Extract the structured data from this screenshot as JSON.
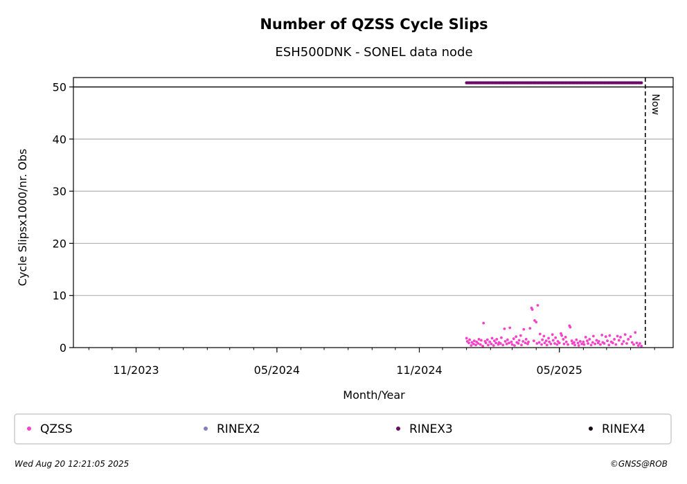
{
  "chart_data": {
    "type": "scatter",
    "title": "Number of QZSS Cycle Slips",
    "subtitle": "ESH500DNK - SONEL data node",
    "xlabel": "Month/Year",
    "ylabel": "Cycle Slipsx1000/nr. Obs",
    "xlim": [
      "2023-08-12",
      "2025-09-25"
    ],
    "ylim": [
      0,
      51.8
    ],
    "y_ticks": [
      0,
      10,
      20,
      30,
      40,
      50
    ],
    "x_ticks": [
      {
        "date": "2023-11-01",
        "label": "11/2023"
      },
      {
        "date": "2024-05-01",
        "label": "05/2024"
      },
      {
        "date": "2024-11-01",
        "label": "11/2024"
      },
      {
        "date": "2025-05-01",
        "label": "05/2025"
      }
    ],
    "grid": "horizontal",
    "cap_line": 50,
    "now_line": {
      "date": "2025-08-20",
      "label": "Now"
    },
    "legend": {
      "placement": "below",
      "entries": [
        {
          "name": "QZSS",
          "color": "#f542c8"
        },
        {
          "name": "RINEX2",
          "color": "#8080c0"
        },
        {
          "name": "RINEX3",
          "color": "#6a0a6a"
        },
        {
          "name": "RINEX4",
          "color": "#1a0a1a"
        }
      ]
    },
    "series": [
      {
        "name": "QZSS",
        "color": "#f542c8",
        "points": [
          [
            "2025-01-01",
            1.8
          ],
          [
            "2025-01-02",
            1.2
          ],
          [
            "2025-01-04",
            0.9
          ],
          [
            "2025-01-05",
            1.5
          ],
          [
            "2025-01-07",
            0.4
          ],
          [
            "2025-01-08",
            1.0
          ],
          [
            "2025-01-10",
            0.7
          ],
          [
            "2025-01-11",
            1.3
          ],
          [
            "2025-01-13",
            0.5
          ],
          [
            "2025-01-14",
            1.1
          ],
          [
            "2025-01-16",
            0.8
          ],
          [
            "2025-01-17",
            1.6
          ],
          [
            "2025-01-19",
            0.6
          ],
          [
            "2025-01-20",
            1.4
          ],
          [
            "2025-01-22",
            0.3
          ],
          [
            "2025-01-23",
            4.7
          ],
          [
            "2025-01-25",
            1.2
          ],
          [
            "2025-01-26",
            0.9
          ],
          [
            "2025-01-28",
            1.5
          ],
          [
            "2025-01-29",
            0.5
          ],
          [
            "2025-01-31",
            1.1
          ],
          [
            "2025-02-02",
            0.7
          ],
          [
            "2025-02-03",
            1.8
          ],
          [
            "2025-02-05",
            0.4
          ],
          [
            "2025-02-06",
            1.3
          ],
          [
            "2025-02-08",
            0.9
          ],
          [
            "2025-02-09",
            1.6
          ],
          [
            "2025-02-11",
            0.6
          ],
          [
            "2025-02-12",
            1.0
          ],
          [
            "2025-02-14",
            0.8
          ],
          [
            "2025-02-15",
            1.9
          ],
          [
            "2025-02-17",
            0.5
          ],
          [
            "2025-02-19",
            3.6
          ],
          [
            "2025-02-20",
            1.2
          ],
          [
            "2025-02-22",
            0.7
          ],
          [
            "2025-02-23",
            1.5
          ],
          [
            "2025-02-25",
            0.9
          ],
          [
            "2025-02-26",
            3.8
          ],
          [
            "2025-02-28",
            1.1
          ],
          [
            "2025-03-01",
            0.6
          ],
          [
            "2025-03-03",
            1.7
          ],
          [
            "2025-03-04",
            0.4
          ],
          [
            "2025-03-06",
            2.1
          ],
          [
            "2025-03-07",
            1.0
          ],
          [
            "2025-03-09",
            0.8
          ],
          [
            "2025-03-10",
            1.4
          ],
          [
            "2025-03-12",
            2.3
          ],
          [
            "2025-03-13",
            0.5
          ],
          [
            "2025-03-15",
            1.2
          ],
          [
            "2025-03-16",
            3.5
          ],
          [
            "2025-03-18",
            0.9
          ],
          [
            "2025-03-19",
            1.6
          ],
          [
            "2025-03-21",
            0.7
          ],
          [
            "2025-03-22",
            1.1
          ],
          [
            "2025-03-24",
            3.7
          ],
          [
            "2025-03-26",
            7.6
          ],
          [
            "2025-03-27",
            7.3
          ],
          [
            "2025-03-29",
            1.3
          ],
          [
            "2025-03-30",
            5.2
          ],
          [
            "2025-04-01",
            4.9
          ],
          [
            "2025-04-02",
            0.8
          ],
          [
            "2025-04-03",
            8.1
          ],
          [
            "2025-04-05",
            1.0
          ],
          [
            "2025-04-06",
            2.6
          ],
          [
            "2025-04-08",
            0.6
          ],
          [
            "2025-04-09",
            1.5
          ],
          [
            "2025-04-11",
            2.2
          ],
          [
            "2025-04-12",
            0.9
          ],
          [
            "2025-04-14",
            1.3
          ],
          [
            "2025-04-15",
            0.5
          ],
          [
            "2025-04-17",
            1.8
          ],
          [
            "2025-04-18",
            1.1
          ],
          [
            "2025-04-20",
            0.7
          ],
          [
            "2025-04-22",
            2.5
          ],
          [
            "2025-04-23",
            1.4
          ],
          [
            "2025-04-25",
            0.8
          ],
          [
            "2025-04-26",
            1.9
          ],
          [
            "2025-04-28",
            0.6
          ],
          [
            "2025-04-29",
            1.2
          ],
          [
            "2025-05-01",
            0.9
          ],
          [
            "2025-05-03",
            2.7
          ],
          [
            "2025-05-04",
            2.3
          ],
          [
            "2025-05-06",
            1.6
          ],
          [
            "2025-05-07",
            0.7
          ],
          [
            "2025-05-09",
            2.0
          ],
          [
            "2025-05-10",
            1.1
          ],
          [
            "2025-05-12",
            0.6
          ],
          [
            "2025-05-14",
            4.2
          ],
          [
            "2025-05-15",
            3.9
          ],
          [
            "2025-05-17",
            1.3
          ],
          [
            "2025-05-18",
            0.8
          ],
          [
            "2025-05-20",
            1.0
          ],
          [
            "2025-05-21",
            0.5
          ],
          [
            "2025-05-23",
            1.5
          ],
          [
            "2025-05-25",
            0.9
          ],
          [
            "2025-05-26",
            0.4
          ],
          [
            "2025-05-28",
            1.2
          ],
          [
            "2025-05-30",
            0.7
          ],
          [
            "2025-06-01",
            1.1
          ],
          [
            "2025-06-02",
            0.6
          ],
          [
            "2025-06-04",
            2.0
          ],
          [
            "2025-06-06",
            1.3
          ],
          [
            "2025-06-07",
            0.8
          ],
          [
            "2025-06-09",
            1.6
          ],
          [
            "2025-06-11",
            0.5
          ],
          [
            "2025-06-13",
            1.0
          ],
          [
            "2025-06-14",
            2.2
          ],
          [
            "2025-06-16",
            0.7
          ],
          [
            "2025-06-18",
            1.4
          ],
          [
            "2025-06-20",
            0.9
          ],
          [
            "2025-06-21",
            1.2
          ],
          [
            "2025-06-23",
            0.6
          ],
          [
            "2025-06-25",
            2.4
          ],
          [
            "2025-06-26",
            1.0
          ],
          [
            "2025-06-28",
            0.8
          ],
          [
            "2025-06-30",
            2.1
          ],
          [
            "2025-07-02",
            1.3
          ],
          [
            "2025-07-04",
            0.5
          ],
          [
            "2025-07-05",
            2.3
          ],
          [
            "2025-07-07",
            1.1
          ],
          [
            "2025-07-09",
            0.9
          ],
          [
            "2025-07-11",
            1.6
          ],
          [
            "2025-07-13",
            0.6
          ],
          [
            "2025-07-15",
            2.2
          ],
          [
            "2025-07-17",
            1.4
          ],
          [
            "2025-07-19",
            2.0
          ],
          [
            "2025-07-21",
            0.7
          ],
          [
            "2025-07-23",
            1.2
          ],
          [
            "2025-07-25",
            2.5
          ],
          [
            "2025-07-27",
            0.8
          ],
          [
            "2025-07-29",
            1.6
          ],
          [
            "2025-08-01",
            2.1
          ],
          [
            "2025-08-03",
            1.0
          ],
          [
            "2025-08-05",
            0.6
          ],
          [
            "2025-08-07",
            2.9
          ],
          [
            "2025-08-09",
            0.9
          ],
          [
            "2025-08-11",
            0.4
          ],
          [
            "2025-08-13",
            0.8
          ],
          [
            "2025-08-15",
            0.3
          ]
        ]
      },
      {
        "name": "RINEX3",
        "color": "#6a0a6a",
        "value": 50.8,
        "start": "2025-01-01",
        "end": "2025-08-15",
        "step_days": 2
      }
    ]
  },
  "footer": {
    "timestamp": "Wed Aug 20 12:21:05 2025",
    "credit": "©GNSS@ROB"
  }
}
